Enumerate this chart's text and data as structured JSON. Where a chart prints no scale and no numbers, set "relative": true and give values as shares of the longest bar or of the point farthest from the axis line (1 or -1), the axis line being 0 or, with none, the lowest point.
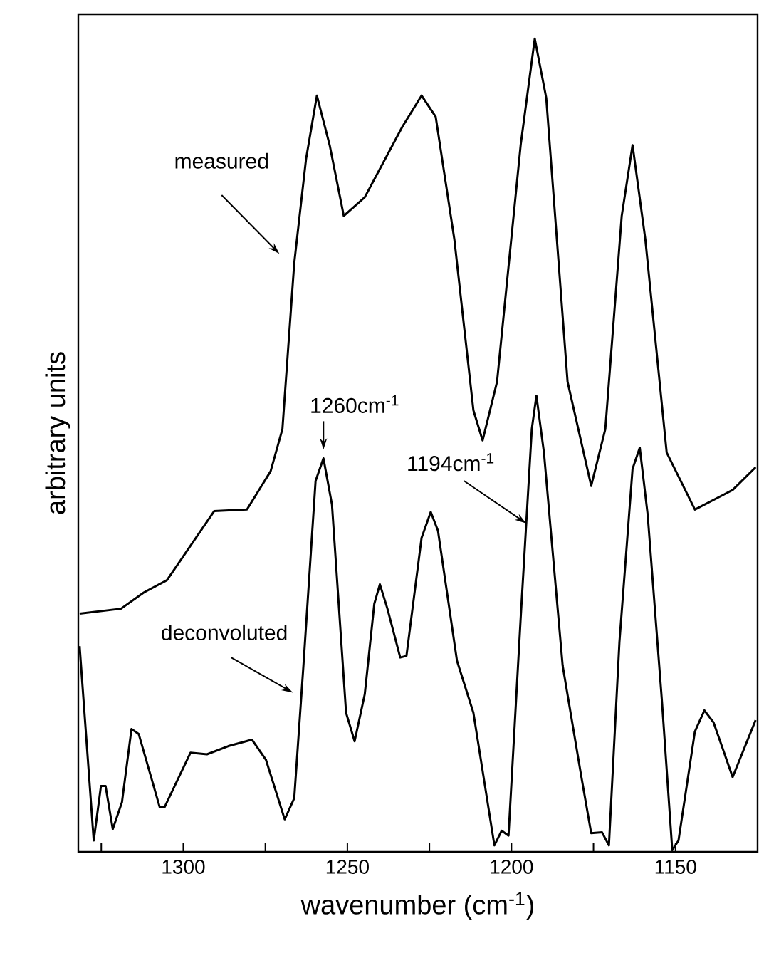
{
  "chart_data": {
    "type": "line",
    "relative": true,
    "xlabel": "wavenumber (cm$^{-1}$)",
    "ylabel": "arbitrary units",
    "xlim": [
      1332,
      1125
    ],
    "xticks": [
      {
        "value": 1325,
        "label": null
      },
      1300,
      {
        "value": 1275,
        "label": null
      },
      1250,
      {
        "value": 1225,
        "label": null
      },
      1200,
      {
        "value": 1175,
        "label": null
      },
      1150
    ],
    "series": [
      {
        "name": "measured",
        "color": "#000000",
        "x": [
          1331.6,
          1319,
          1312,
          1305,
          1290.6,
          1280.6,
          1273.4,
          1269.8,
          1266.2,
          1262.6,
          1259.3,
          1255.4,
          1251.1,
          1244.7,
          1233.2,
          1227.4,
          1223.1,
          1217.4,
          1211.6,
          1208.8,
          1204.4,
          1197.2,
          1192.9,
          1189.4,
          1182.9,
          1175.7,
          1171.4,
          1166.4,
          1163.1,
          1159.2,
          1152.7,
          1144.1,
          1132.6,
          1125.6
        ],
        "values": [
          0.293,
          0.299,
          0.319,
          0.334,
          0.419,
          0.421,
          0.468,
          0.52,
          0.724,
          0.852,
          0.93,
          0.869,
          0.782,
          0.805,
          0.892,
          0.93,
          0.904,
          0.753,
          0.543,
          0.506,
          0.578,
          0.869,
          1.0,
          0.927,
          0.578,
          0.45,
          0.52,
          0.782,
          0.869,
          0.753,
          0.491,
          0.421,
          0.445,
          0.473
        ]
      },
      {
        "name": "deconvoluted",
        "color": "#000000",
        "x": [
          1331.6,
          1327.3,
          1325.1,
          1323.7,
          1321.5,
          1318.7,
          1315.8,
          1313.6,
          1307.2,
          1305.7,
          1297.8,
          1292.8,
          1286.3,
          1279.1,
          1274.8,
          1269.1,
          1266.2,
          1263.4,
          1259.7,
          1257.3,
          1254.7,
          1250.4,
          1247.8,
          1244.7,
          1241.8,
          1240.1,
          1237.8,
          1233.9,
          1232.0,
          1227.4,
          1224.6,
          1222.4,
          1216.6,
          1211.6,
          1205.2,
          1203.0,
          1200.9,
          1197.2,
          1193.8,
          1192.4,
          1190.1,
          1184.4,
          1178.6,
          1175.7,
          1172.4,
          1170.3,
          1167.1,
          1163.1,
          1160.9,
          1158.5,
          1154.1,
          1151.0,
          1149.1,
          1144.1,
          1141.2,
          1138.4,
          1132.6,
          1125.6
        ],
        "values": [
          0.253,
          0.014,
          0.081,
          0.081,
          0.028,
          0.061,
          0.151,
          0.145,
          0.055,
          0.055,
          0.122,
          0.12,
          0.13,
          0.138,
          0.113,
          0.04,
          0.066,
          0.229,
          0.456,
          0.484,
          0.427,
          0.171,
          0.136,
          0.194,
          0.305,
          0.329,
          0.299,
          0.239,
          0.241,
          0.386,
          0.418,
          0.395,
          0.235,
          0.171,
          0.008,
          0.026,
          0.02,
          0.287,
          0.52,
          0.561,
          0.491,
          0.229,
          0.09,
          0.023,
          0.024,
          0.008,
          0.258,
          0.471,
          0.497,
          0.415,
          0.183,
          0.002,
          0.014,
          0.148,
          0.174,
          0.159,
          0.092,
          0.162
        ]
      }
    ],
    "annotations": [
      {
        "text": "1260cm$^{-1}$",
        "x": 1257.3,
        "y": 0.484
      },
      {
        "text": "1194cm$^{-1}$",
        "x": 1195.5,
        "y": 0.404
      }
    ]
  }
}
